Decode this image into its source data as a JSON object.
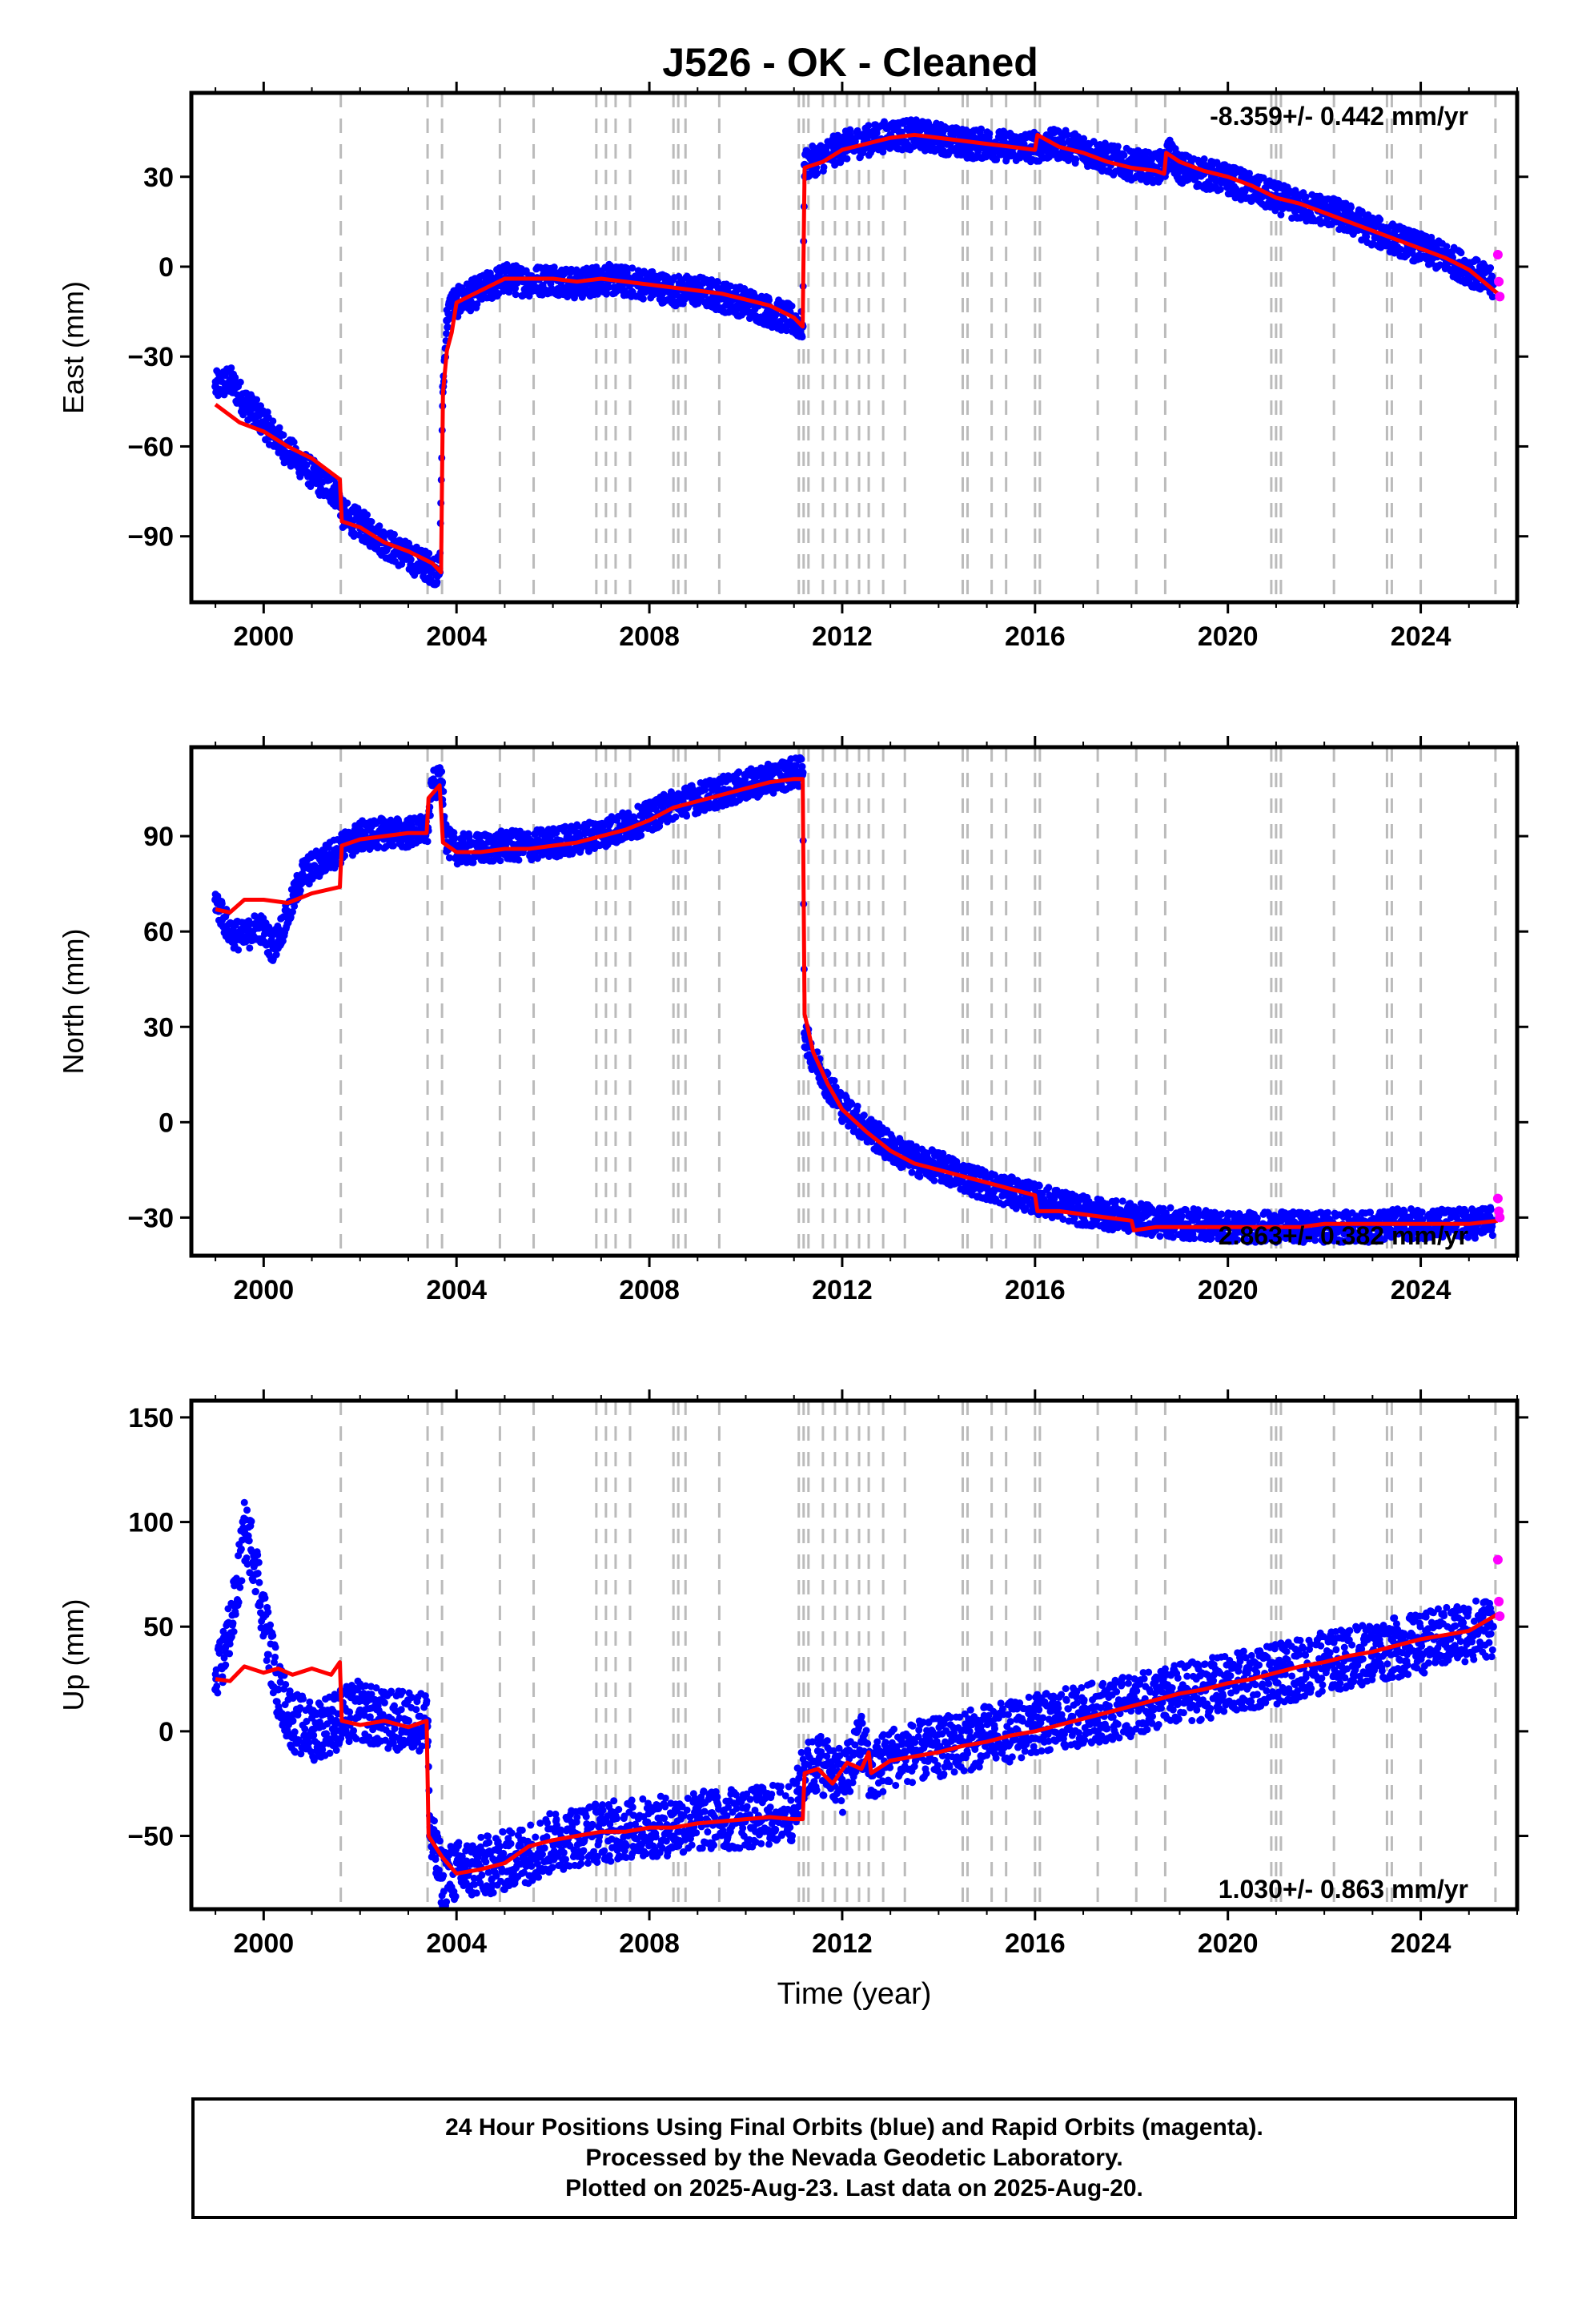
{
  "title": "J526  - OK - Cleaned",
  "footer": {
    "line1": "24 Hour Positions Using Final Orbits (blue) and Rapid Orbits (magenta).",
    "line2": "Processed by the Nevada Geodetic Laboratory.",
    "line3": "Plotted on 2025-Aug-23. Last data on 2025-Aug-20."
  },
  "colors": {
    "final_orbits": "#0000ff",
    "rapid_orbits": "#ff00ff",
    "model": "#ff0000",
    "event_lines": "#bbbbbb"
  },
  "chart_data": [
    {
      "type": "scatter",
      "title": "",
      "xlabel": "",
      "ylabel": "East (mm)",
      "xlim": [
        1998.5,
        2026.0
      ],
      "ylim": [
        -112,
        58
      ],
      "x_ticks": [
        2000,
        2004,
        2008,
        2012,
        2016,
        2020,
        2024
      ],
      "y_ticks": [
        -90,
        -60,
        -30,
        0,
        30
      ],
      "rate_annotation": "-8.359+/- 0.442 mm/yr",
      "annotation_position": "top-right",
      "event_lines": [
        2001.6,
        2003.4,
        2003.7,
        2004.9,
        2005.6,
        2006.9,
        2007.1,
        2007.3,
        2007.6,
        2008.5,
        2008.6,
        2008.75,
        2009.45,
        2011.1,
        2011.2,
        2011.3,
        2011.6,
        2011.85,
        2012.1,
        2012.35,
        2012.55,
        2012.85,
        2013.3,
        2014.5,
        2014.6,
        2015.1,
        2015.4,
        2016.0,
        2016.1,
        2017.3,
        2018.1,
        2018.7,
        2020.9,
        2021.0,
        2021.1,
        2022.2,
        2023.3,
        2023.4,
        2024.0,
        2025.55
      ],
      "series": [
        {
          "name": "Final Orbits",
          "role": "observed",
          "x": [
            1999.0,
            1999.3,
            1999.6,
            2000.0,
            2000.4,
            2000.8,
            2001.2,
            2001.55,
            2001.65,
            2002.0,
            2002.5,
            2003.0,
            2003.4,
            2003.65,
            2003.72,
            2003.8,
            2003.9,
            2004.0,
            2004.5,
            2005.0,
            2005.5,
            2006.0,
            2006.5,
            2007.0,
            2007.5,
            2008.0,
            2008.5,
            2009.0,
            2009.5,
            2010.0,
            2010.5,
            2011.0,
            2011.18,
            2011.22,
            2011.5,
            2012.0,
            2012.5,
            2013.0,
            2013.5,
            2014.0,
            2014.5,
            2015.0,
            2015.5,
            2016.0,
            2016.5,
            2017.0,
            2017.5,
            2018.0,
            2018.5,
            2018.7,
            2018.75,
            2019.0,
            2019.5,
            2020.0,
            2020.5,
            2021.0,
            2021.5,
            2022.0,
            2022.5,
            2023.0,
            2023.5,
            2024.0,
            2024.5,
            2025.0,
            2025.5
          ],
          "y": [
            -40,
            -38,
            -45,
            -52,
            -60,
            -66,
            -72,
            -76,
            -83,
            -86,
            -92,
            -97,
            -100,
            -102,
            -40,
            -18,
            -12,
            -12,
            -8,
            -4,
            -5,
            -4,
            -6,
            -4,
            -5,
            -6,
            -8,
            -8,
            -10,
            -12,
            -15,
            -18,
            -20,
            34,
            36,
            40,
            42,
            44,
            44,
            43,
            41,
            41,
            40,
            40,
            41,
            39,
            36,
            34,
            33,
            34,
            38,
            33,
            31,
            29,
            26,
            23,
            20,
            19,
            16,
            12,
            9,
            6,
            3,
            -1,
            -6
          ]
        },
        {
          "name": "Rapid Orbits",
          "role": "observed",
          "x": [
            2025.6,
            2025.62,
            2025.64
          ],
          "y": [
            4,
            -5,
            -10
          ]
        },
        {
          "name": "Model",
          "role": "fit",
          "x": [
            1999.0,
            1999.5,
            2000.0,
            2000.5,
            2001.0,
            2001.58,
            2001.62,
            2002.0,
            2002.5,
            2003.0,
            2003.5,
            2003.68,
            2003.72,
            2003.8,
            2003.9,
            2004.0,
            2004.5,
            2005.0,
            2005.5,
            2006.0,
            2006.5,
            2007.0,
            2007.5,
            2008.0,
            2008.5,
            2009.0,
            2009.5,
            2010.0,
            2010.5,
            2011.0,
            2011.18,
            2011.22,
            2011.6,
            2012.0,
            2012.5,
            2013.0,
            2013.5,
            2014.0,
            2014.5,
            2015.0,
            2015.5,
            2016.0,
            2016.05,
            2016.5,
            2017.0,
            2017.5,
            2018.0,
            2018.5,
            2018.68,
            2018.72,
            2019.0,
            2019.5,
            2020.0,
            2020.5,
            2021.0,
            2021.5,
            2022.0,
            2022.5,
            2023.0,
            2023.5,
            2024.0,
            2024.5,
            2025.0,
            2025.6
          ],
          "y": [
            -46,
            -52,
            -55,
            -60,
            -64,
            -71,
            -85,
            -87,
            -92,
            -95,
            -99,
            -102,
            -42,
            -28,
            -22,
            -12,
            -8,
            -4,
            -4,
            -4,
            -5,
            -4,
            -5,
            -6,
            -7,
            -8,
            -9,
            -11,
            -13,
            -17,
            -20,
            33,
            35,
            39,
            41,
            43,
            44,
            43,
            42,
            41,
            40,
            39,
            44,
            40,
            38,
            35,
            33,
            32,
            31,
            38,
            35,
            32,
            30,
            27,
            23,
            21,
            18,
            15,
            12,
            9,
            6,
            3,
            -1,
            -9
          ]
        }
      ]
    },
    {
      "type": "scatter",
      "title": "",
      "xlabel": "",
      "ylabel": "North (mm)",
      "xlim": [
        1998.5,
        2026.0
      ],
      "ylim": [
        -42,
        118
      ],
      "x_ticks": [
        2000,
        2004,
        2008,
        2012,
        2016,
        2020,
        2024
      ],
      "y_ticks": [
        -30,
        0,
        30,
        60,
        90
      ],
      "rate_annotation": "2.863+/- 0.382 mm/yr",
      "annotation_position": "bottom-right",
      "event_lines": [
        2001.6,
        2003.4,
        2003.7,
        2004.9,
        2005.6,
        2006.9,
        2007.1,
        2007.3,
        2007.6,
        2008.5,
        2008.6,
        2008.75,
        2009.45,
        2011.1,
        2011.2,
        2011.3,
        2011.6,
        2011.85,
        2012.1,
        2012.35,
        2012.55,
        2012.85,
        2013.3,
        2014.5,
        2014.6,
        2015.1,
        2015.4,
        2016.0,
        2016.1,
        2017.3,
        2018.1,
        2018.7,
        2020.9,
        2021.0,
        2021.1,
        2022.2,
        2023.3,
        2023.4,
        2024.0,
        2025.55
      ],
      "series": [
        {
          "name": "Final Orbits",
          "role": "observed",
          "x": [
            1999.0,
            1999.3,
            1999.6,
            1999.9,
            2000.2,
            2000.5,
            2000.8,
            2001.2,
            2001.6,
            2002.0,
            2002.5,
            2003.0,
            2003.4,
            2003.5,
            2003.7,
            2003.8,
            2004.0,
            2004.5,
            2005.0,
            2005.5,
            2006.0,
            2006.5,
            2007.0,
            2007.5,
            2008.0,
            2008.5,
            2009.0,
            2009.5,
            2010.0,
            2010.5,
            2011.0,
            2011.18,
            2011.22,
            2011.4,
            2011.7,
            2012.0,
            2012.5,
            2013.0,
            2013.5,
            2014.0,
            2014.5,
            2015.0,
            2015.5,
            2016.0,
            2016.5,
            2017.0,
            2017.5,
            2018.0,
            2018.5,
            2019.0,
            2019.5,
            2020.0,
            2020.5,
            2021.0,
            2021.5,
            2022.0,
            2022.5,
            2023.0,
            2023.5,
            2024.0,
            2024.5,
            2025.0,
            2025.5
          ],
          "y": [
            70,
            60,
            58,
            62,
            55,
            65,
            78,
            82,
            86,
            90,
            91,
            91,
            92,
            106,
            107,
            88,
            86,
            86,
            87,
            87,
            88,
            89,
            91,
            93,
            96,
            100,
            102,
            104,
            106,
            108,
            110,
            110,
            28,
            20,
            12,
            5,
            -2,
            -8,
            -12,
            -14,
            -17,
            -20,
            -22,
            -24,
            -26,
            -28,
            -29,
            -30,
            -31,
            -32,
            -32,
            -33,
            -33,
            -33,
            -33,
            -33,
            -33,
            -33,
            -32,
            -32,
            -32,
            -32,
            -31
          ]
        },
        {
          "name": "Rapid Orbits",
          "role": "observed",
          "x": [
            2025.6,
            2025.62,
            2025.64
          ],
          "y": [
            -24,
            -28,
            -30
          ]
        },
        {
          "name": "Model",
          "role": "fit",
          "x": [
            1999.0,
            1999.3,
            1999.6,
            2000.0,
            2000.5,
            2001.0,
            2001.58,
            2001.62,
            2002.0,
            2002.5,
            2003.0,
            2003.38,
            2003.42,
            2003.65,
            2003.72,
            2004.0,
            2004.5,
            2005.0,
            2005.5,
            2006.0,
            2006.5,
            2007.0,
            2007.5,
            2008.0,
            2008.5,
            2009.0,
            2009.5,
            2010.0,
            2010.5,
            2011.0,
            2011.18,
            2011.22,
            2011.4,
            2011.7,
            2012.0,
            2012.5,
            2013.0,
            2013.5,
            2014.0,
            2014.5,
            2015.0,
            2015.5,
            2016.0,
            2016.05,
            2016.5,
            2017.0,
            2017.5,
            2018.0,
            2018.05,
            2018.5,
            2019.0,
            2019.5,
            2020.0,
            2020.5,
            2021.0,
            2021.5,
            2022.0,
            2022.5,
            2023.0,
            2023.5,
            2024.0,
            2024.5,
            2025.0,
            2025.6
          ],
          "y": [
            67,
            66,
            70,
            70,
            69,
            72,
            74,
            87,
            89,
            90,
            91,
            91,
            102,
            106,
            88,
            85,
            85,
            86,
            86,
            87,
            88,
            90,
            92,
            95,
            99,
            101,
            103,
            105,
            107,
            108,
            108,
            34,
            22,
            12,
            4,
            -3,
            -9,
            -13,
            -15,
            -17,
            -19,
            -21,
            -23,
            -28,
            -28,
            -29,
            -30,
            -31,
            -34,
            -33,
            -33,
            -33,
            -33,
            -33,
            -33,
            -33,
            -32,
            -32,
            -32,
            -32,
            -32,
            -32,
            -32,
            -31
          ]
        }
      ]
    },
    {
      "type": "scatter",
      "title": "",
      "xlabel": "Time (year)",
      "ylabel": "Up (mm)",
      "xlim": [
        1998.5,
        2026.0
      ],
      "ylim": [
        -85,
        158
      ],
      "x_ticks": [
        2000,
        2004,
        2008,
        2012,
        2016,
        2020,
        2024
      ],
      "y_ticks": [
        -50,
        0,
        50,
        100,
        150
      ],
      "rate_annotation": "1.030+/- 0.863 mm/yr",
      "annotation_position": "bottom-right",
      "event_lines": [
        2001.6,
        2003.4,
        2003.7,
        2004.9,
        2005.6,
        2006.9,
        2007.1,
        2007.3,
        2007.6,
        2008.5,
        2008.6,
        2008.75,
        2009.45,
        2011.1,
        2011.2,
        2011.3,
        2011.6,
        2011.85,
        2012.1,
        2012.35,
        2012.55,
        2012.85,
        2013.3,
        2014.5,
        2014.6,
        2015.1,
        2015.4,
        2016.0,
        2016.1,
        2017.3,
        2018.1,
        2018.7,
        2020.9,
        2021.0,
        2021.1,
        2022.2,
        2023.3,
        2023.4,
        2024.0,
        2025.55
      ],
      "series": [
        {
          "name": "Final Orbits",
          "role": "observed",
          "x": [
            1999.0,
            1999.2,
            1999.4,
            1999.6,
            1999.8,
            2000.0,
            2000.3,
            2000.6,
            2001.0,
            2001.5,
            2002.0,
            2002.5,
            2003.0,
            2003.4,
            2003.45,
            2003.7,
            2004.0,
            2004.5,
            2005.0,
            2005.5,
            2006.0,
            2006.5,
            2007.0,
            2007.5,
            2008.0,
            2008.5,
            2009.0,
            2009.5,
            2010.0,
            2010.5,
            2011.0,
            2011.2,
            2011.5,
            2011.8,
            2012.0,
            2012.4,
            2012.6,
            2013.0,
            2013.5,
            2014.0,
            2014.5,
            2015.0,
            2015.5,
            2016.0,
            2016.5,
            2017.0,
            2017.5,
            2018.0,
            2018.5,
            2019.0,
            2019.5,
            2020.0,
            2020.5,
            2021.0,
            2021.5,
            2022.0,
            2022.5,
            2023.0,
            2023.5,
            2024.0,
            2024.5,
            2025.0,
            2025.5
          ],
          "y": [
            20,
            40,
            60,
            95,
            85,
            55,
            20,
            5,
            0,
            5,
            10,
            5,
            5,
            5,
            -50,
            -70,
            -67,
            -65,
            -62,
            -58,
            -53,
            -50,
            -48,
            -47,
            -46,
            -45,
            -43,
            -42,
            -42,
            -40,
            -38,
            -20,
            -15,
            -18,
            -25,
            -5,
            -20,
            -12,
            -10,
            -8,
            -5,
            -2,
            0,
            3,
            5,
            8,
            10,
            12,
            15,
            18,
            20,
            22,
            25,
            27,
            30,
            33,
            35,
            38,
            40,
            42,
            45,
            48,
            50
          ]
        },
        {
          "name": "Rapid Orbits",
          "role": "observed",
          "x": [
            2025.6,
            2025.62,
            2025.64
          ],
          "y": [
            82,
            62,
            55
          ]
        },
        {
          "name": "Model",
          "role": "fit",
          "x": [
            1999.0,
            1999.3,
            1999.6,
            2000.0,
            2000.3,
            2000.6,
            2001.0,
            2001.4,
            2001.58,
            2001.62,
            2002.0,
            2002.5,
            2003.0,
            2003.38,
            2003.42,
            2003.7,
            2004.0,
            2004.5,
            2005.0,
            2005.5,
            2006.0,
            2006.5,
            2007.0,
            2007.5,
            2008.0,
            2008.5,
            2009.0,
            2009.5,
            2010.0,
            2010.5,
            2011.0,
            2011.18,
            2011.22,
            2011.5,
            2011.8,
            2012.1,
            2012.4,
            2012.55,
            2012.6,
            2013.0,
            2013.5,
            2014.0,
            2014.5,
            2015.0,
            2015.5,
            2016.0,
            2016.5,
            2017.0,
            2017.5,
            2018.0,
            2018.5,
            2019.0,
            2019.5,
            2020.0,
            2020.5,
            2021.0,
            2021.5,
            2022.0,
            2022.5,
            2023.0,
            2023.5,
            2024.0,
            2024.5,
            2025.0,
            2025.6
          ],
          "y": [
            25,
            24,
            31,
            28,
            30,
            27,
            30,
            27,
            33,
            5,
            3,
            5,
            2,
            5,
            -50,
            -60,
            -68,
            -66,
            -63,
            -55,
            -52,
            -50,
            -48,
            -48,
            -46,
            -46,
            -44,
            -43,
            -42,
            -41,
            -42,
            -42,
            -20,
            -18,
            -25,
            -15,
            -18,
            -10,
            -20,
            -14,
            -12,
            -10,
            -7,
            -5,
            -2,
            0,
            3,
            6,
            9,
            12,
            15,
            18,
            20,
            23,
            25,
            28,
            31,
            33,
            36,
            38,
            41,
            44,
            46,
            48,
            56
          ]
        }
      ]
    }
  ]
}
